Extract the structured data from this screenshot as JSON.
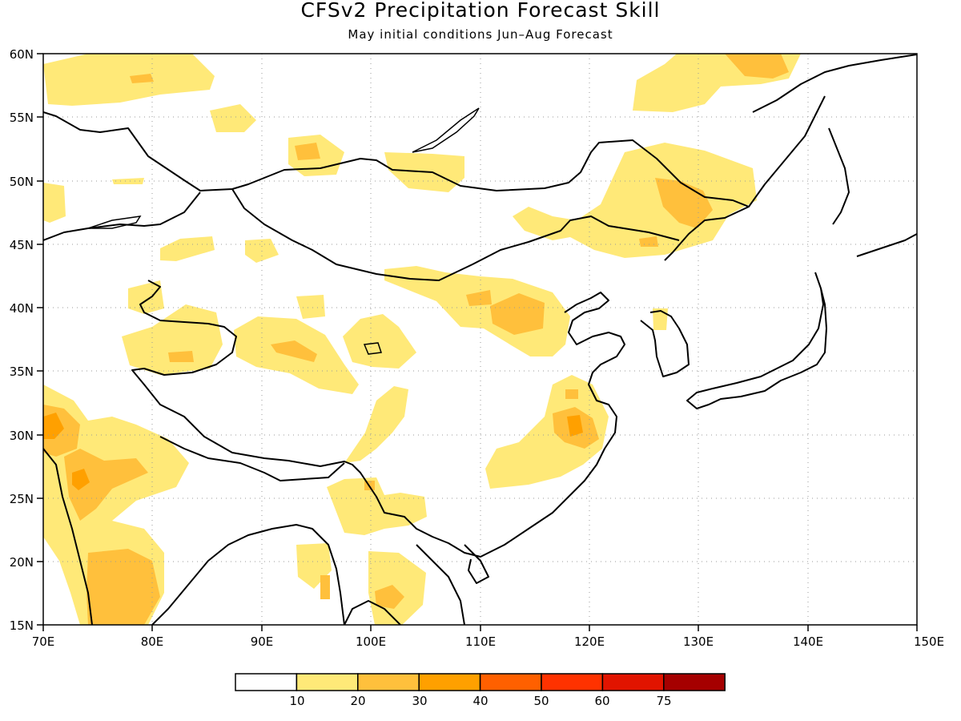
{
  "title": "CFSv2 Precipitation Forecast Skill",
  "subtitle": "May initial conditions  Jun–Aug Forecast",
  "map": {
    "lon_range": [
      70,
      150
    ],
    "lat_range": [
      15,
      60
    ],
    "lon_ticks": [
      "70E",
      "80E",
      "90E",
      "100E",
      "110E",
      "120E",
      "130E",
      "140E",
      "150E"
    ],
    "lat_ticks": [
      "15N",
      "20N",
      "25N",
      "30N",
      "35N",
      "40N",
      "45N",
      "50N",
      "55N",
      "60N"
    ],
    "grid": "dotted",
    "shading_colors": [
      "#ffe978",
      "#ffc03c",
      "#ffa000"
    ]
  },
  "colorbar": {
    "colors": [
      "#ffffff",
      "#ffe978",
      "#ffc03c",
      "#ffa000",
      "#ff6000",
      "#ff3200",
      "#e11400",
      "#a50000"
    ],
    "labels": [
      "10",
      "20",
      "30",
      "40",
      "50",
      "60",
      "75"
    ]
  }
}
